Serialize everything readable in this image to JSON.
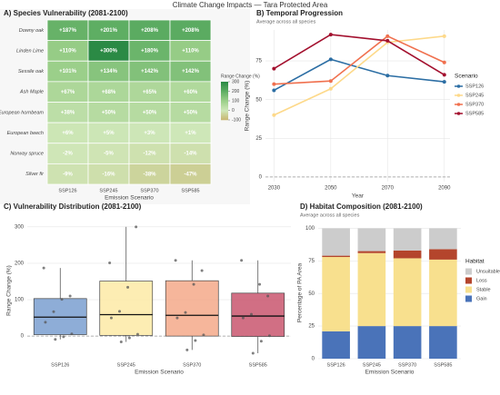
{
  "title": "Climate Change Impacts — Tara Protected Area",
  "chart_data": [
    {
      "type": "heatmap",
      "title": "A) Species Vulnerability (2081-2100)",
      "xlabel": "Emission Scenario",
      "categories": [
        "SSP126",
        "SSP245",
        "SSP370",
        "SSP585"
      ],
      "rows": [
        "Downy oak",
        "Linden Lime",
        "Sessile oak",
        "Ash   Maple",
        "European hornbeam",
        "European beech",
        "Norway spruce",
        "Silver fir"
      ],
      "values": [
        [
          187,
          201,
          208,
          208
        ],
        [
          110,
          300,
          180,
          110
        ],
        [
          101,
          134,
          142,
          142
        ],
        [
          67,
          68,
          65,
          60
        ],
        [
          38,
          50,
          50,
          50
        ],
        [
          6,
          5,
          3,
          1
        ],
        [
          -2,
          -5,
          -12,
          -14
        ],
        [
          -9,
          -16,
          -38,
          -47
        ]
      ],
      "value_labels": [
        [
          "+187%",
          "+201%",
          "+208%",
          "+208%"
        ],
        [
          "+110%",
          "+300%",
          "+180%",
          "+110%"
        ],
        [
          "+101%",
          "+134%",
          "+142%",
          "+142%"
        ],
        [
          "+67%",
          "+68%",
          "+65%",
          "+60%"
        ],
        [
          "+38%",
          "+50%",
          "+50%",
          "+50%"
        ],
        [
          "+6%",
          "+5%",
          "+3%",
          "+1%"
        ],
        [
          "-2%",
          "-5%",
          "-12%",
          "-14%"
        ],
        [
          "-9%",
          "-16%",
          "-38%",
          "-47%"
        ]
      ],
      "colorbar_title": "Range Change (%)",
      "clim": [
        -100,
        300
      ],
      "cticks": [
        300,
        200,
        100,
        0,
        -100
      ],
      "colors": [
        "#c8b46e",
        "#cfe7b8",
        "#9ccf8a",
        "#5fae63",
        "#2b8a45"
      ]
    },
    {
      "type": "line",
      "title": "B) Temporal Progression",
      "subtitle": "Average across all species",
      "xlabel": "Year",
      "ylabel": "Range Change (%)",
      "legend_title": "Scenario",
      "x": [
        2030,
        2050,
        2070,
        2090
      ],
      "xlim": [
        2027,
        2092
      ],
      "xticks": [
        2030,
        2050,
        2070,
        2090
      ],
      "ylim": [
        -3,
        95
      ],
      "yticks": [
        0,
        25,
        50,
        75
      ],
      "reference_line": 0,
      "grid": true,
      "series": [
        {
          "name": "SSP126",
          "color": "#2c6ea4",
          "values": [
            56,
            76,
            65.5,
            61.5
          ]
        },
        {
          "name": "SSP245",
          "color": "#fdd98a",
          "values": [
            40,
            57,
            87,
            91
          ]
        },
        {
          "name": "SSP370",
          "color": "#f0704e",
          "values": [
            60,
            62,
            91,
            74
          ]
        },
        {
          "name": "SSP585",
          "color": "#a3102e",
          "values": [
            70,
            92,
            88,
            66
          ]
        }
      ]
    },
    {
      "type": "box",
      "title": "C) Vulnerability Distribution (2081-2100)",
      "xlabel": "Emission Scenario",
      "ylabel": "Range Change (%)",
      "categories": [
        "SSP126",
        "SSP245",
        "SSP370",
        "SSP585"
      ],
      "ylim": [
        -62,
        312
      ],
      "yticks": [
        0,
        100,
        200,
        300
      ],
      "reference_line": 0,
      "grid": true,
      "colors": [
        "#7a9fd0",
        "#fdeaa6",
        "#f5a98a",
        "#c9566f"
      ],
      "min": [
        -9,
        -16,
        -38,
        -47
      ],
      "q1": [
        4,
        2,
        0,
        -1
      ],
      "median": [
        52,
        59,
        57,
        55
      ],
      "q3": [
        103,
        151,
        152,
        118
      ],
      "max": [
        187,
        300,
        208,
        208
      ],
      "points": [
        [
          187,
          110,
          101,
          67,
          38,
          6,
          -2,
          -9
        ],
        [
          201,
          300,
          134,
          68,
          50,
          5,
          -5,
          -16
        ],
        [
          208,
          180,
          142,
          65,
          50,
          3,
          -12,
          -38
        ],
        [
          208,
          110,
          142,
          60,
          50,
          1,
          -14,
          -47
        ]
      ]
    },
    {
      "type": "bar",
      "stacked": true,
      "title": "D) Habitat Composition (2081-2100)",
      "subtitle": "Average across all species",
      "xlabel": "Emission Scenario",
      "ylabel": "Percentage of PA Area",
      "legend_title": "Habitat",
      "categories": [
        "SSP126",
        "SSP245",
        "SSP370",
        "SSP585"
      ],
      "ylim": [
        0,
        101
      ],
      "yticks": [
        0,
        25,
        50,
        75,
        100
      ],
      "grid": true,
      "series": [
        {
          "name": "Gain",
          "color": "#4a73b9",
          "values": [
            21,
            25,
            25,
            25
          ]
        },
        {
          "name": "Stable",
          "color": "#f8e08e",
          "values": [
            57,
            56,
            52,
            51
          ]
        },
        {
          "name": "Loss",
          "color": "#b4452c",
          "values": [
            1,
            1.5,
            6,
            8
          ]
        },
        {
          "name": "Unsuitable",
          "color": "#cccccc",
          "values": [
            21,
            17.5,
            17,
            16
          ]
        }
      ]
    }
  ]
}
